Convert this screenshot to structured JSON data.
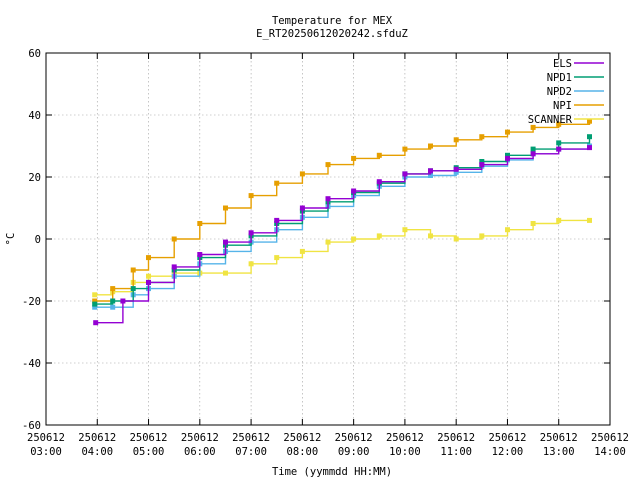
{
  "chart_data": {
    "type": "line",
    "title": "Temperature for MEX",
    "subtitle": "E_RT20250612020242.sfduZ",
    "xlabel": "Time (yymmdd HH:MM)",
    "ylabel": "°C",
    "ylim": [
      -60,
      60
    ],
    "yticks": [
      -60,
      -40,
      -20,
      0,
      20,
      40,
      60
    ],
    "xlim_hours": [
      3,
      14
    ],
    "xticks": [
      {
        "h": 3,
        "date": "250612",
        "time": "03:00"
      },
      {
        "h": 4,
        "date": "250612",
        "time": "04:00"
      },
      {
        "h": 5,
        "date": "250612",
        "time": "05:00"
      },
      {
        "h": 6,
        "date": "250612",
        "time": "06:00"
      },
      {
        "h": 7,
        "date": "250612",
        "time": "07:00"
      },
      {
        "h": 8,
        "date": "250612",
        "time": "08:00"
      },
      {
        "h": 9,
        "date": "250612",
        "time": "09:00"
      },
      {
        "h": 10,
        "date": "250612",
        "time": "10:00"
      },
      {
        "h": 11,
        "date": "250612",
        "time": "11:00"
      },
      {
        "h": 12,
        "date": "250612",
        "time": "12:00"
      },
      {
        "h": 13,
        "date": "250612",
        "time": "13:00"
      },
      {
        "h": 14,
        "date": "250612",
        "time": "14:00"
      }
    ],
    "grid": true,
    "legend_position": "top-right",
    "series": [
      {
        "name": "ELS",
        "color": "#9400d3",
        "x": [
          3.97,
          4.5,
          5.0,
          5.5,
          6.0,
          6.5,
          7.0,
          7.5,
          8.0,
          8.5,
          9.0,
          9.5,
          10.0,
          10.5,
          11.0,
          11.5,
          12.0,
          12.5,
          13.0,
          13.6
        ],
        "y": [
          -27,
          -20,
          -14,
          -9,
          -5,
          -1,
          2,
          6,
          10,
          13,
          15.5,
          18.5,
          21,
          22,
          22.5,
          24,
          26,
          27.5,
          29,
          29.5
        ]
      },
      {
        "name": "NPD1",
        "color": "#009e73",
        "x": [
          3.95,
          4.3,
          4.7,
          5.0,
          5.5,
          6.0,
          6.5,
          7.0,
          7.5,
          8.0,
          8.5,
          9.0,
          9.5,
          10.0,
          10.5,
          11.0,
          11.5,
          12.0,
          12.5,
          13.0,
          13.6
        ],
        "y": [
          -21,
          -20,
          -16,
          -14,
          -10,
          -6,
          -2,
          1,
          5,
          9,
          12,
          15,
          18,
          21,
          22,
          23,
          25,
          27,
          29,
          31,
          33
        ]
      },
      {
        "name": "NPD2",
        "color": "#56b4e9",
        "x": [
          3.95,
          4.3,
          4.7,
          5.0,
          5.5,
          6.0,
          6.5,
          7.0,
          7.5,
          8.0,
          8.5,
          9.0,
          9.5,
          10.0,
          10.5,
          11.0,
          11.5,
          12.0,
          12.5,
          13.0,
          13.6
        ],
        "y": [
          -22,
          -22,
          -18,
          -16,
          -12,
          -8,
          -4,
          -1,
          3,
          7,
          10.5,
          14,
          17,
          20,
          20.5,
          21.5,
          23.5,
          25.5,
          27.5,
          29,
          30
        ]
      },
      {
        "name": "NPI",
        "color": "#e69f00",
        "x": [
          3.95,
          4.3,
          4.7,
          5.0,
          5.5,
          6.0,
          6.5,
          7.0,
          7.5,
          8.0,
          8.5,
          9.0,
          9.5,
          10.0,
          10.5,
          11.0,
          11.5,
          12.0,
          12.5,
          13.0,
          13.6
        ],
        "y": [
          -20,
          -16,
          -10,
          -6,
          0,
          5,
          10,
          14,
          18,
          21,
          24,
          26,
          27,
          29,
          30,
          32,
          33,
          34.5,
          36,
          37,
          38
        ]
      },
      {
        "name": "SCANNER",
        "color": "#f0e442",
        "x": [
          3.95,
          4.3,
          4.7,
          5.0,
          5.5,
          6.0,
          6.5,
          7.0,
          7.5,
          8.0,
          8.5,
          9.0,
          9.5,
          10.0,
          10.5,
          11.0,
          11.5,
          12.0,
          12.5,
          13.0,
          13.6
        ],
        "y": [
          -18,
          -17,
          -14,
          -12,
          -11,
          -11,
          -11,
          -8,
          -6,
          -4,
          -1,
          0,
          1,
          3,
          1,
          0,
          1,
          3,
          5,
          6,
          6
        ]
      }
    ]
  }
}
